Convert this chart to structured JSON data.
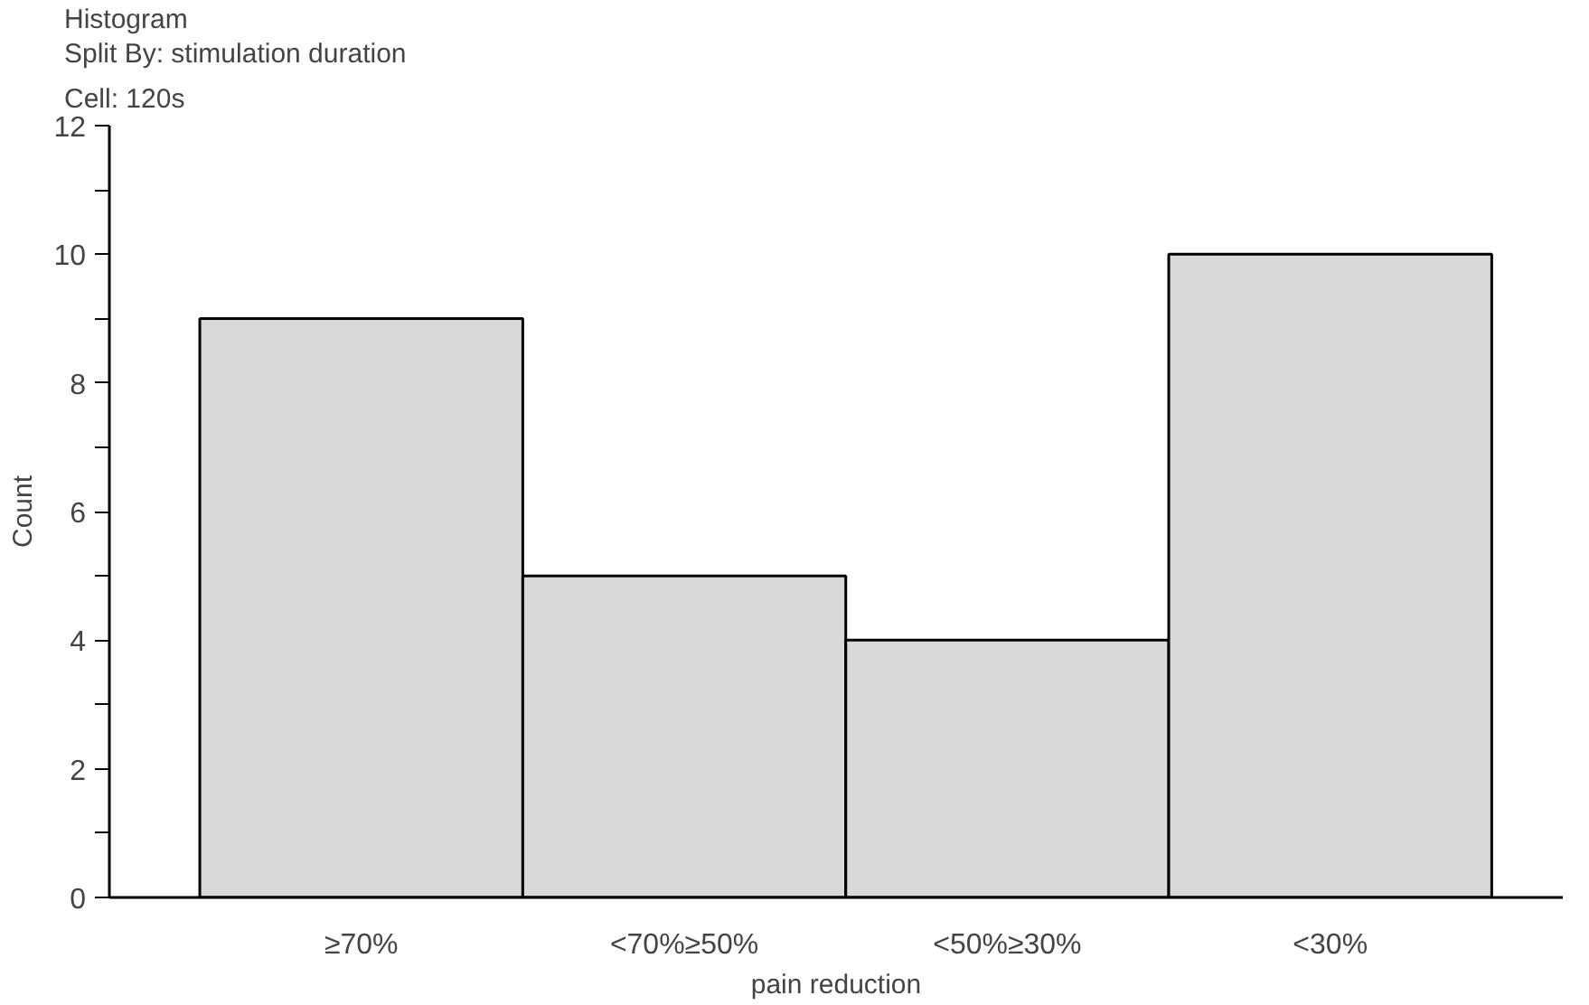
{
  "chart_data": {
    "type": "bar",
    "title": "Histogram",
    "subtitle": "Split By: stimulation duration",
    "annotations": [
      "Cell:  120s"
    ],
    "xlabel": "pain reduction",
    "ylabel": "Count",
    "categories": [
      "≥70%",
      "<70%≥50%",
      "<50%≥30%",
      "<30%"
    ],
    "values": [
      9,
      5,
      4,
      10
    ],
    "color": "#d9d9d9",
    "ylim": [
      0,
      12
    ],
    "yticks": [
      0,
      {
        "value": 1,
        "label": null
      },
      2,
      {
        "value": 3,
        "label": null
      },
      4,
      {
        "value": 5,
        "label": null
      },
      6,
      {
        "value": 7,
        "label": null
      },
      8,
      {
        "value": 9,
        "label": null
      },
      10,
      {
        "value": 11,
        "label": null
      },
      12
    ],
    "grid": false
  }
}
